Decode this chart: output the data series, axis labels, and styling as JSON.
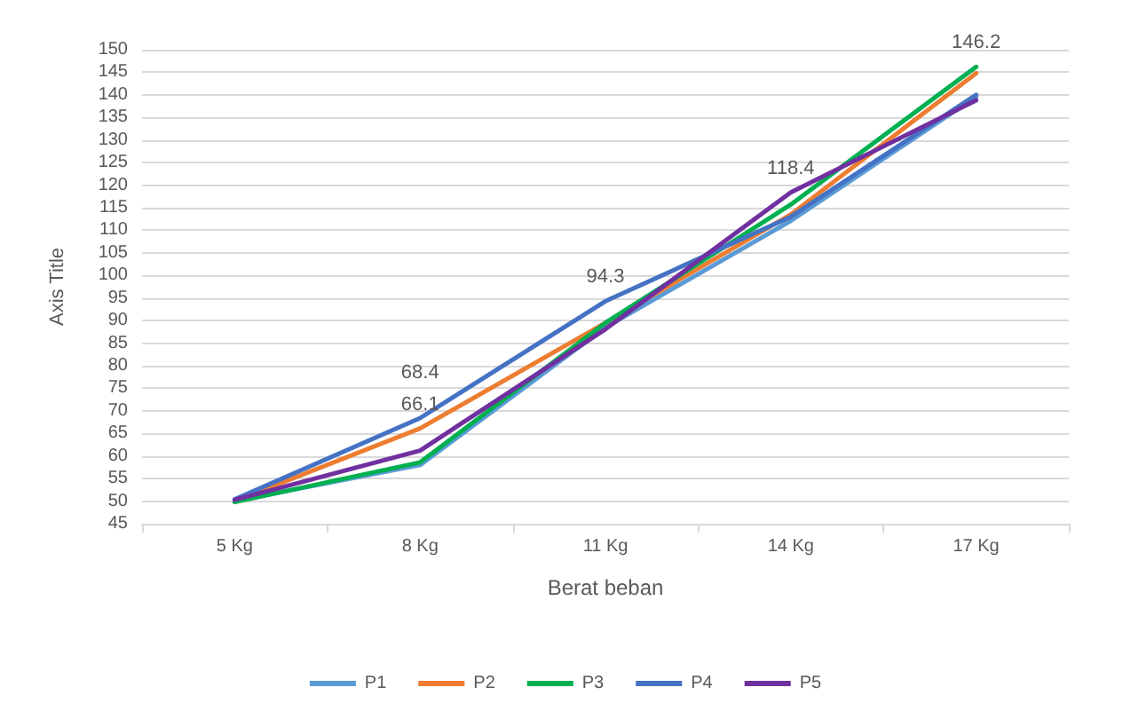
{
  "chart_data": {
    "type": "line",
    "xlabel": "Berat beban",
    "ylabel": "Axis Title",
    "categories": [
      "5 Kg",
      "8 Kg",
      "11 Kg",
      "14 Kg",
      "17 Kg"
    ],
    "series": [
      {
        "name": "P1",
        "color": "#5b9bd5",
        "values": [
          50.0,
          58.0,
          88.5,
          112.1,
          139.6
        ],
        "value_labels": [
          null,
          null,
          null,
          null,
          null
        ]
      },
      {
        "name": "P2",
        "color": "#ed7d31",
        "values": [
          50.0,
          66.1,
          89.5,
          113.5,
          144.8
        ],
        "value_labels": [
          null,
          "66.1",
          null,
          null,
          null
        ]
      },
      {
        "name": "P3",
        "color": "#00b050",
        "values": [
          49.8,
          58.6,
          89.5,
          115.7,
          146.2
        ],
        "value_labels": [
          null,
          null,
          null,
          null,
          "146.2"
        ]
      },
      {
        "name": "P4",
        "color": "#4472c4",
        "values": [
          50.4,
          68.4,
          94.3,
          113.0,
          140.0
        ],
        "value_labels": [
          null,
          "68.4",
          "94.3",
          null,
          null
        ]
      },
      {
        "name": "P5",
        "color": "#7030a0",
        "values": [
          50.3,
          61.2,
          88.1,
          118.4,
          138.8
        ],
        "value_labels": [
          null,
          null,
          null,
          "118.4",
          null
        ]
      }
    ],
    "ylim": [
      45,
      150
    ],
    "yticks": [
      45,
      50,
      55,
      60,
      65,
      70,
      75,
      80,
      85,
      90,
      95,
      100,
      105,
      110,
      115,
      120,
      125,
      130,
      135,
      140,
      145,
      150
    ],
    "grid": "y",
    "legend": "bottom",
    "marker": "none",
    "line_style": "solid"
  }
}
